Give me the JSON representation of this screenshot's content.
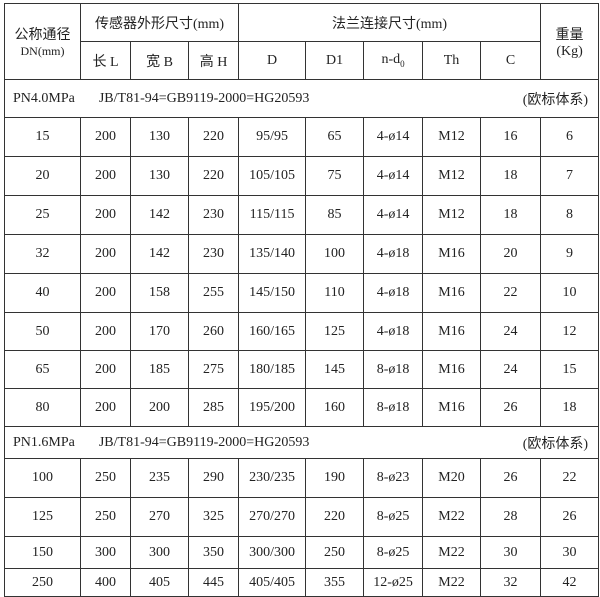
{
  "header": {
    "dn_label": "公称通径",
    "dn_unit": "DN(mm)",
    "sensor_group": "传感器外形尺寸(mm)",
    "flange_group": "法兰连接尺寸(mm)",
    "weight_label": "重量",
    "weight_unit": "(Kg)",
    "cols": {
      "L": "长 L",
      "B": "宽 B",
      "H": "高 H",
      "D": "D",
      "D1": "D1",
      "nd": "n-d",
      "nd_sub": "0",
      "Th": "Th",
      "C": "C"
    }
  },
  "sections": [
    {
      "pressure": "PN4.0MPa",
      "standard": "JB/T81-94=GB9119-2000=HG20593",
      "system": "(欧标体系)",
      "rows": [
        [
          "15",
          "200",
          "130",
          "220",
          "95/95",
          "65",
          "4-ø14",
          "M12",
          "16",
          "6"
        ],
        [
          "20",
          "200",
          "130",
          "220",
          "105/105",
          "75",
          "4-ø14",
          "M12",
          "18",
          "7"
        ],
        [
          "25",
          "200",
          "142",
          "230",
          "115/115",
          "85",
          "4-ø14",
          "M12",
          "18",
          "8"
        ],
        [
          "32",
          "200",
          "142",
          "230",
          "135/140",
          "100",
          "4-ø18",
          "M16",
          "20",
          "9"
        ],
        [
          "40",
          "200",
          "158",
          "255",
          "145/150",
          "110",
          "4-ø18",
          "M16",
          "22",
          "10"
        ],
        [
          "50",
          "200",
          "170",
          "260",
          "160/165",
          "125",
          "4-ø18",
          "M16",
          "24",
          "12"
        ],
        [
          "65",
          "200",
          "185",
          "275",
          "180/185",
          "145",
          "8-ø18",
          "M16",
          "24",
          "15"
        ],
        [
          "80",
          "200",
          "200",
          "285",
          "195/200",
          "160",
          "8-ø18",
          "M16",
          "26",
          "18"
        ]
      ]
    },
    {
      "pressure": "PN1.6MPa",
      "standard": "JB/T81-94=GB9119-2000=HG20593",
      "system": "(欧标体系)",
      "rows": [
        [
          "100",
          "250",
          "235",
          "290",
          "230/235",
          "190",
          "8-ø23",
          "M20",
          "26",
          "22"
        ],
        [
          "125",
          "250",
          "270",
          "325",
          "270/270",
          "220",
          "8-ø25",
          "M22",
          "28",
          "26"
        ],
        [
          "150",
          "300",
          "300",
          "350",
          "300/300",
          "250",
          "8-ø25",
          "M22",
          "30",
          "30"
        ],
        [
          "250",
          "400",
          "405",
          "445",
          "405/405",
          "355",
          "12-ø25",
          "M22",
          "32",
          "42"
        ]
      ]
    }
  ]
}
